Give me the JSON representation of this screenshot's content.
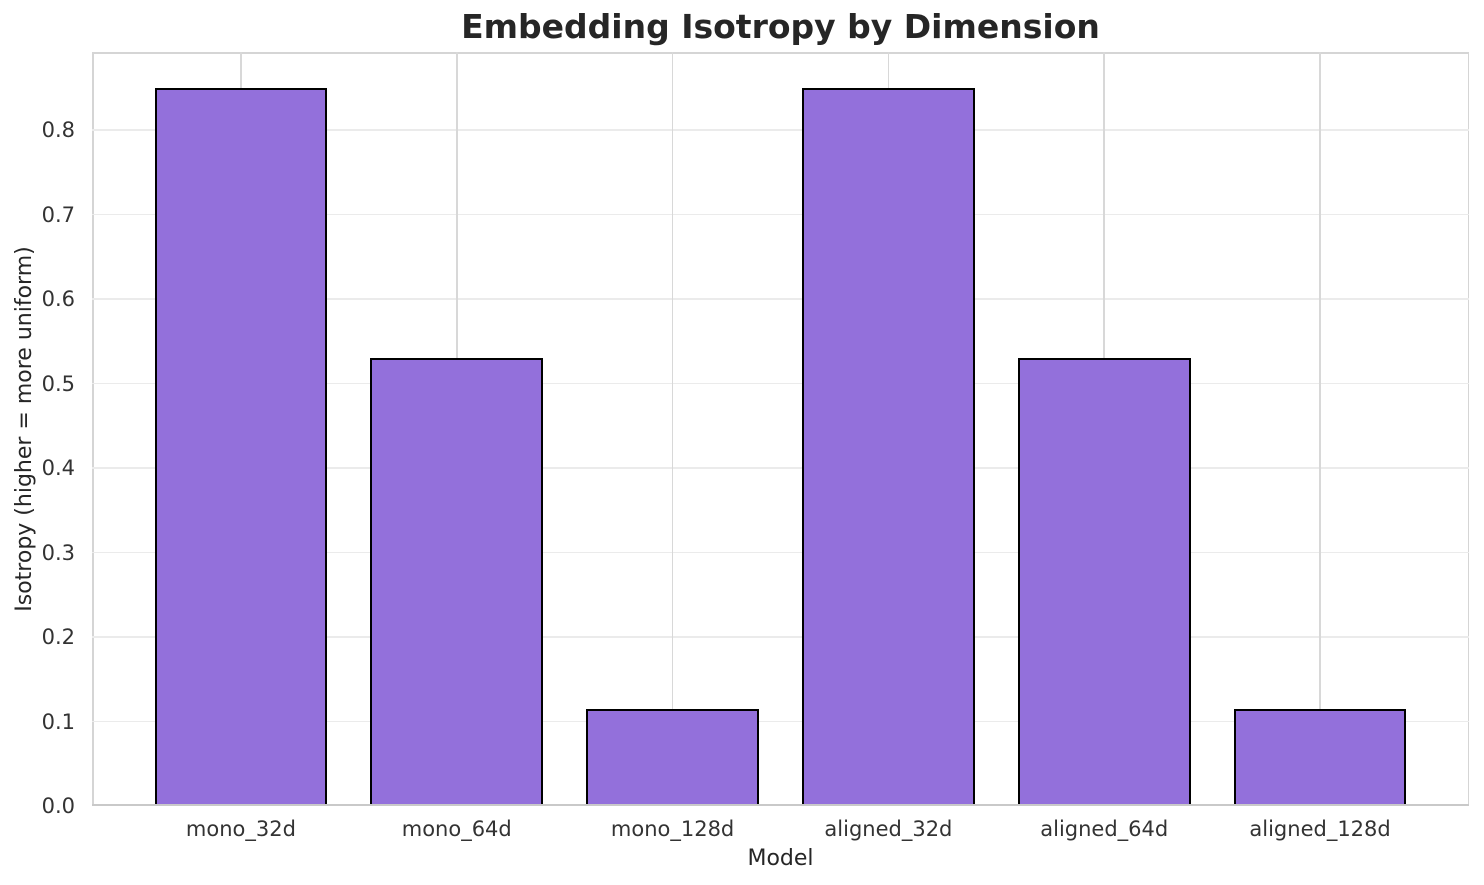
{
  "chart_data": {
    "type": "bar",
    "title": "Embedding Isotropy by Dimension",
    "xlabel": "Model",
    "ylabel": "Isotropy (higher = more uniform)",
    "categories": [
      "mono_32d",
      "mono_64d",
      "mono_128d",
      "aligned_32d",
      "aligned_64d",
      "aligned_128d"
    ],
    "values": [
      0.85,
      0.53,
      0.115,
      0.85,
      0.53,
      0.115
    ],
    "ylim": [
      0,
      0.8925
    ],
    "xlim": [
      -0.69,
      5.69
    ],
    "bar_width": 0.8,
    "yticks": [
      0.0,
      0.1,
      0.2,
      0.3,
      0.4,
      0.5,
      0.6,
      0.7,
      0.8
    ],
    "ytick_labels": [
      "0.0",
      "0.1",
      "0.2",
      "0.3",
      "0.4",
      "0.5",
      "0.6",
      "0.7",
      "0.8"
    ],
    "grid": true,
    "legend": false,
    "colors": {
      "bar_fill": "#9370DB",
      "bar_edge": "#000000",
      "grid_horizontal": "#ebebeb",
      "grid_vertical": "#d8d8d8",
      "spine": "#d5d5d5",
      "text": "#262626",
      "background": "#ffffff"
    }
  }
}
